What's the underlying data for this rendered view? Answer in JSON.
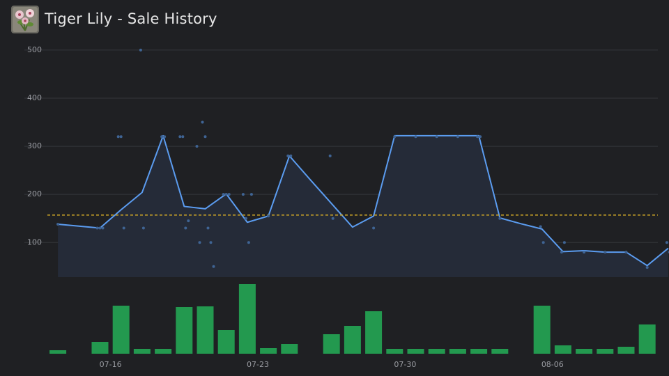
{
  "title": "Tiger Lily - Sale History",
  "chart_data": {
    "type": "line",
    "categories": [
      null,
      null,
      null,
      "07-16",
      null,
      null,
      null,
      null,
      null,
      null,
      "07-23",
      null,
      null,
      null,
      null,
      null,
      null,
      "07-30",
      null,
      null,
      null,
      null,
      null,
      null,
      "08-06",
      null,
      null,
      null,
      null,
      null
    ],
    "series": [
      {
        "color": "#5b9cf0",
        "area_color": "#252b38",
        "values": [
          138,
          134,
          130,
          168,
          204,
          322,
          175,
          170,
          201,
          142,
          155,
          280,
          230,
          181,
          132,
          155,
          322,
          322,
          322,
          322,
          322,
          151,
          139,
          128,
          81,
          83,
          80,
          80,
          52,
          88
        ]
      }
    ],
    "sales": {
      "color": "#3f6494",
      "values": [
        [
          138
        ],
        [],
        [
          130,
          130,
          130
        ],
        [
          320,
          320,
          130
        ],
        [
          500,
          130
        ],
        [
          320,
          320
        ],
        [
          320,
          320,
          130,
          145
        ],
        [
          300,
          100,
          350,
          320,
          130,
          100,
          50
        ],
        [
          200,
          200,
          200
        ],
        [
          200,
          150,
          100,
          200
        ],
        [
          155
        ],
        [
          280,
          280
        ],
        [],
        [
          280,
          150
        ],
        [],
        [
          130
        ],
        [
          320
        ],
        [
          320
        ],
        [
          320
        ],
        [
          320
        ],
        [
          320,
          320
        ],
        [
          150
        ],
        [],
        [
          133,
          100
        ],
        [
          80,
          100
        ],
        [
          80
        ],
        [
          80
        ],
        [
          80
        ],
        [
          48
        ],
        [
          100,
          80
        ]
      ]
    },
    "average": 157,
    "average_color": "#c9a227",
    "volume": {
      "color": "#23994f",
      "ylim": [
        0,
        100
      ],
      "values": [
        5,
        0,
        17,
        69,
        7,
        7,
        67,
        68,
        34,
        100,
        8,
        14,
        0,
        28,
        40,
        61,
        7,
        7,
        7,
        7,
        7,
        7,
        0,
        69,
        12,
        7,
        7,
        10,
        42,
        0
      ]
    },
    "ylim": [
      28,
      510
    ],
    "yticks": [
      100,
      200,
      300,
      400,
      500
    ],
    "grid": true
  }
}
